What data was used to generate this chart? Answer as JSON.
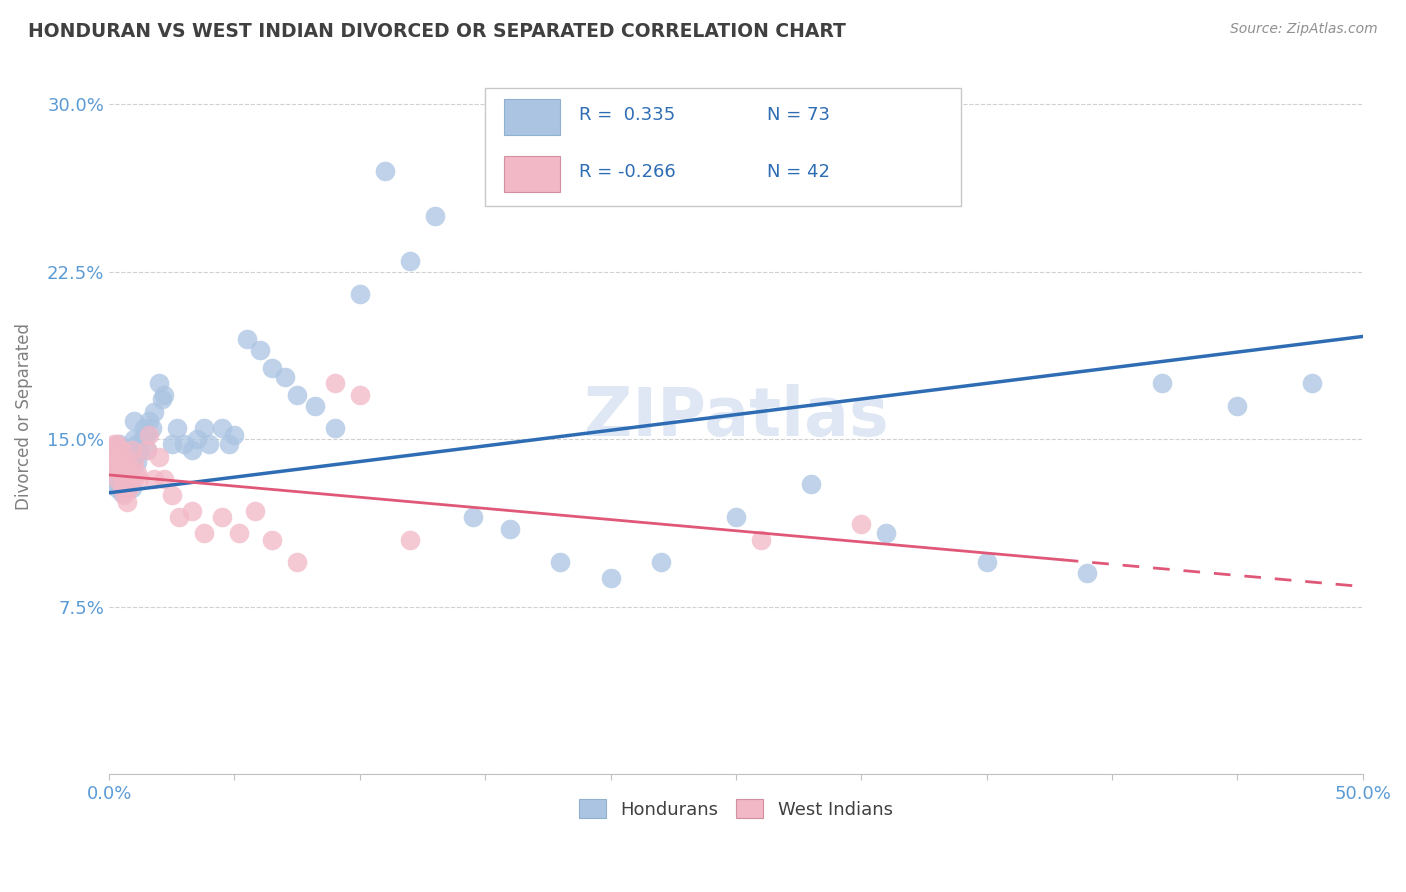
{
  "title": "HONDURAN VS WEST INDIAN DIVORCED OR SEPARATED CORRELATION CHART",
  "source_text": "Source: ZipAtlas.com",
  "ylabel": "Divorced or Separated",
  "xlim": [
    0.0,
    0.5
  ],
  "ylim": [
    0.0,
    0.32
  ],
  "hondurans_color": "#aac4e2",
  "west_indians_color": "#f2b8c6",
  "line1_color": "#2e6db4",
  "line2_color": "#e05878",
  "title_color": "#404040",
  "axis_label_color": "#5b9bd5",
  "ylabel_color": "#808080",
  "background_color": "#ffffff",
  "grid_color": "#d0d0d0",
  "watermark": "ZIPatlas",
  "h_line_start_y": 0.126,
  "h_line_end_y": 0.196,
  "w_line_start_y": 0.134,
  "w_line_end_y": 0.084,
  "w_line_solid_end_x": 0.38,
  "hondurans_x": [
    0.001,
    0.001,
    0.002,
    0.002,
    0.003,
    0.003,
    0.003,
    0.004,
    0.004,
    0.004,
    0.005,
    0.005,
    0.005,
    0.006,
    0.006,
    0.006,
    0.007,
    0.007,
    0.007,
    0.008,
    0.008,
    0.009,
    0.009,
    0.01,
    0.01,
    0.01,
    0.011,
    0.011,
    0.012,
    0.013,
    0.014,
    0.015,
    0.015,
    0.016,
    0.017,
    0.018,
    0.02,
    0.021,
    0.022,
    0.025,
    0.027,
    0.03,
    0.033,
    0.035,
    0.038,
    0.04,
    0.045,
    0.048,
    0.05,
    0.055,
    0.06,
    0.065,
    0.07,
    0.075,
    0.082,
    0.09,
    0.1,
    0.11,
    0.12,
    0.13,
    0.145,
    0.16,
    0.18,
    0.2,
    0.22,
    0.25,
    0.28,
    0.31,
    0.35,
    0.39,
    0.42,
    0.45,
    0.48
  ],
  "hondurans_y": [
    0.13,
    0.14,
    0.135,
    0.145,
    0.128,
    0.138,
    0.145,
    0.132,
    0.14,
    0.148,
    0.126,
    0.136,
    0.144,
    0.13,
    0.138,
    0.146,
    0.128,
    0.136,
    0.142,
    0.13,
    0.14,
    0.128,
    0.138,
    0.142,
    0.15,
    0.158,
    0.14,
    0.148,
    0.145,
    0.15,
    0.155,
    0.145,
    0.152,
    0.158,
    0.155,
    0.162,
    0.175,
    0.168,
    0.17,
    0.148,
    0.155,
    0.148,
    0.145,
    0.15,
    0.155,
    0.148,
    0.155,
    0.148,
    0.152,
    0.195,
    0.19,
    0.182,
    0.178,
    0.17,
    0.165,
    0.155,
    0.215,
    0.27,
    0.23,
    0.25,
    0.115,
    0.11,
    0.095,
    0.088,
    0.095,
    0.115,
    0.13,
    0.108,
    0.095,
    0.09,
    0.175,
    0.165,
    0.175
  ],
  "west_indians_x": [
    0.001,
    0.001,
    0.002,
    0.002,
    0.003,
    0.003,
    0.003,
    0.004,
    0.004,
    0.005,
    0.005,
    0.005,
    0.006,
    0.006,
    0.007,
    0.007,
    0.008,
    0.008,
    0.009,
    0.01,
    0.01,
    0.011,
    0.012,
    0.015,
    0.016,
    0.018,
    0.02,
    0.022,
    0.025,
    0.028,
    0.033,
    0.038,
    0.045,
    0.052,
    0.058,
    0.065,
    0.075,
    0.09,
    0.1,
    0.12,
    0.26,
    0.3
  ],
  "west_indians_y": [
    0.138,
    0.145,
    0.14,
    0.148,
    0.132,
    0.14,
    0.148,
    0.135,
    0.142,
    0.128,
    0.136,
    0.145,
    0.125,
    0.14,
    0.122,
    0.135,
    0.128,
    0.138,
    0.145,
    0.132,
    0.14,
    0.135,
    0.132,
    0.145,
    0.152,
    0.132,
    0.142,
    0.132,
    0.125,
    0.115,
    0.118,
    0.108,
    0.115,
    0.108,
    0.118,
    0.105,
    0.095,
    0.175,
    0.17,
    0.105,
    0.105,
    0.112
  ]
}
